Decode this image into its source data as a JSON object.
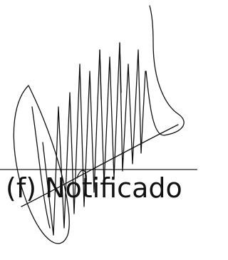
{
  "signature": {
    "caption": "(f) Notificado"
  }
}
